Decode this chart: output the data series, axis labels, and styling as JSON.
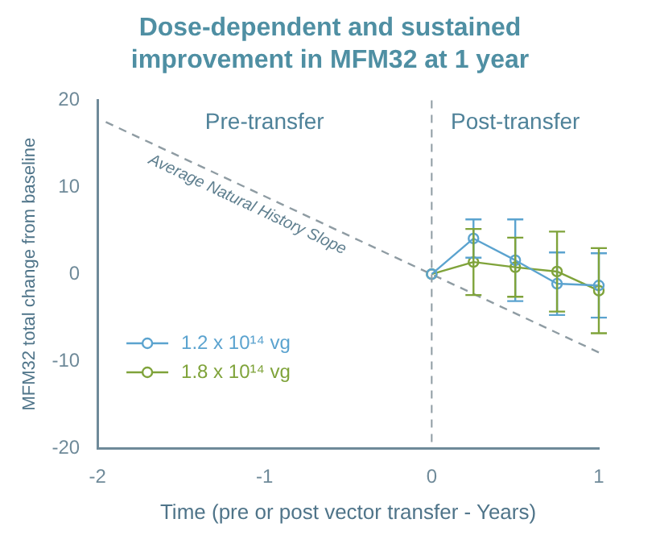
{
  "chart_data": {
    "type": "line",
    "title": "Dose-dependent and sustained improvement in MFM32 at 1 year",
    "xlabel": "Time (pre or post vector transfer - Years)",
    "ylabel": "MFM32 total change from baseline",
    "annotations": [
      "Pre-transfer",
      "Post-transfer"
    ],
    "x": [
      0,
      0.25,
      0.5,
      0.75,
      1
    ],
    "series": [
      {
        "name": "1.2 x 10¹⁴ vg",
        "color": "#5ba3cf",
        "values": [
          0,
          4.1,
          1.6,
          -1.1,
          -1.3
        ],
        "errors": [
          null,
          2.2,
          4.7,
          3.6,
          3.7
        ],
        "marker": "circle",
        "line_style": "solid"
      },
      {
        "name": "1.8 x 10¹⁴ vg",
        "color": "#7fa33a",
        "values": [
          0,
          1.4,
          0.8,
          0.3,
          -1.9
        ],
        "errors": [
          null,
          3.8,
          3.4,
          4.6,
          4.9
        ],
        "marker": "circle",
        "line_style": "solid"
      },
      {
        "name": "Average Natural History Slope",
        "color": "#8f9ca3",
        "x": [
          -1.95,
          1
        ],
        "values": [
          17.5,
          -9
        ],
        "marker": "none",
        "line_style": "dashed"
      }
    ],
    "ref_lines": [
      {
        "axis": "x",
        "value": 0,
        "color": "#8f9ca3",
        "line_style": "dashed"
      }
    ],
    "xlim": [
      -2,
      1
    ],
    "xticks": [
      -2,
      -1,
      0,
      1
    ],
    "ylim": [
      -20,
      20
    ],
    "yticks": [
      -20,
      -10,
      0,
      10,
      20
    ],
    "grid": false,
    "legend": "bottom left"
  }
}
